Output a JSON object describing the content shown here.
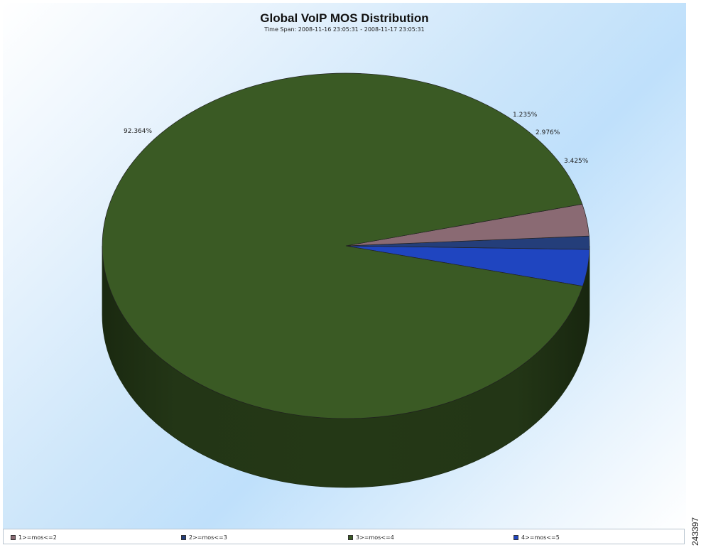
{
  "figure_id": "243397",
  "chart_data": {
    "type": "pie",
    "title": "Global VoIP MOS Distribution",
    "subtitle": "Time Span: 2008-11-16 23:05:31 - 2008-11-17 23:05:31",
    "slices": [
      {
        "label": "1>=mos<=2",
        "value": 2.976,
        "value_label": "2.976%",
        "color": "#8a6a73"
      },
      {
        "label": "2>=mos<=3",
        "value": 1.235,
        "value_label": "1.235%",
        "color": "#243e7a"
      },
      {
        "label": "3>=mos<=4",
        "value": 92.364,
        "value_label": "92.364%",
        "color": "#3a5a24"
      },
      {
        "label": "4>=mos<=5",
        "value": 3.425,
        "value_label": "3.425%",
        "color": "#1f45c0"
      }
    ],
    "legend_position": "bottom"
  }
}
